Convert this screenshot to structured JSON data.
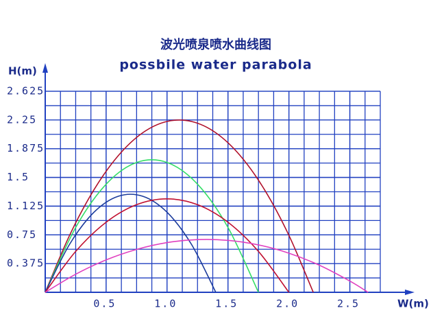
{
  "chart_data": {
    "type": "line",
    "title": "波光喷泉喷水曲线图",
    "subtitle": "possbile water parabola",
    "x_label": "W(m)",
    "y_label": "H(m)",
    "xlim": [
      0,
      2.75
    ],
    "ylim": [
      0,
      2.625
    ],
    "xticks": [
      0.5,
      {
        "value": 1,
        "label": "1.0"
      },
      1.5,
      {
        "value": 2,
        "label": "2.0"
      },
      2.5
    ],
    "yticks": [
      0.375,
      0.75,
      1.125,
      1.5,
      1.875,
      2.25,
      2.625
    ],
    "grid": true,
    "grid_color": "#2040c0",
    "series": [
      {
        "color": "#b0102a",
        "x": [
          0,
          0.2,
          0.4,
          0.6,
          0.8,
          1.0,
          1.2,
          1.4,
          1.6,
          1.8,
          2.0,
          2.2
        ],
        "values": [
          0,
          0.744,
          1.339,
          1.785,
          2.083,
          2.231,
          2.231,
          2.083,
          1.785,
          1.339,
          0.744,
          0
        ]
      },
      {
        "color": "#33dd66",
        "x": [
          0,
          0.25,
          0.5,
          0.75,
          1.0,
          1.25,
          1.5,
          1.75
        ],
        "values": [
          0,
          0.847,
          1.412,
          1.695,
          1.695,
          1.412,
          0.847,
          0
        ]
      },
      {
        "color": "#1a3a9a",
        "x": [
          0,
          0.2,
          0.4,
          0.6,
          0.8,
          1.0,
          1.2,
          1.4
        ],
        "values": [
          0,
          0.627,
          1.045,
          1.254,
          1.254,
          1.045,
          0.627,
          0
        ]
      },
      {
        "color": "#c01030",
        "x": [
          0,
          0.25,
          0.5,
          0.75,
          1.0,
          1.25,
          1.5,
          1.75,
          2.0
        ],
        "values": [
          0,
          0.534,
          0.915,
          1.144,
          1.22,
          1.144,
          0.915,
          0.534,
          0
        ]
      },
      {
        "color": "#e040c0",
        "x": [
          0,
          0.25,
          0.5,
          0.75,
          1.0,
          1.25,
          1.5,
          1.75,
          2.0,
          2.25,
          2.5,
          2.65
        ],
        "values": [
          0,
          0.236,
          0.423,
          0.56,
          0.649,
          0.688,
          0.678,
          0.619,
          0.511,
          0.354,
          0.147,
          0
        ]
      }
    ]
  }
}
